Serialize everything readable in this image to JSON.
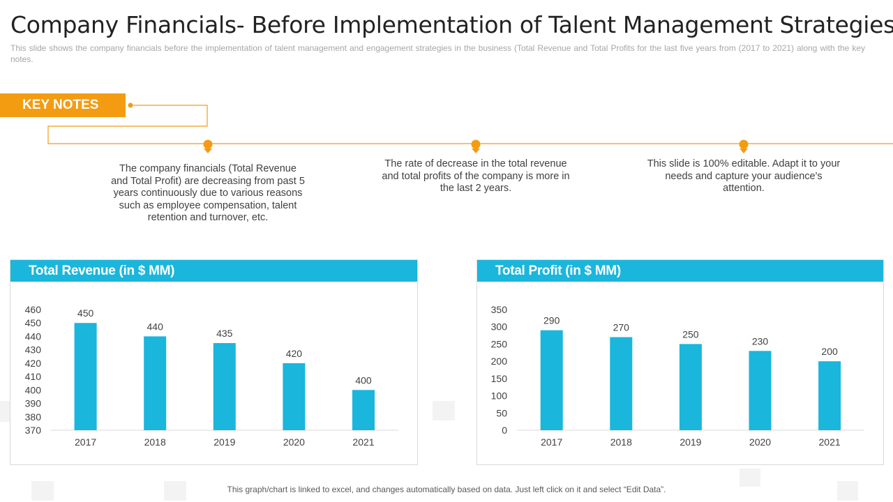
{
  "page": {
    "title": "Company Financials- Before Implementation of Talent Management Strategies",
    "subtitle": "This slide shows the company financials before the implementation of talent management and engagement strategies in the business (Total Revenue and Total Profits for the last five years from (2017 to 2021) along with the key notes.",
    "footer": "This graph/chart is linked to excel, and changes automatically based on data. Just left click on it and select “Edit Data”."
  },
  "key_notes": {
    "label": "KEY NOTES",
    "notes": [
      "The company financials (Total Revenue and Total Profit) are decreasing from past 5 years continuously due to various reasons such as employee compensation, talent retention and turnover, etc.",
      "The rate of decrease in the total revenue and total profits of the company is more in the last 2 years.",
      "This slide is 100% editable. Adapt it to your needs and capture your audience's attention."
    ]
  },
  "colors": {
    "accent_orange": "#f39c12",
    "bar_blue": "#1ab6dc",
    "header_blue": "#1ab6dc"
  },
  "chart_data": [
    {
      "type": "bar",
      "title": "Total Revenue (in $ MM)",
      "categories": [
        "2017",
        "2018",
        "2019",
        "2020",
        "2021"
      ],
      "values": [
        450,
        440,
        435,
        420,
        400
      ],
      "ylim": [
        370,
        460
      ],
      "yticks": [
        370,
        380,
        390,
        400,
        410,
        420,
        430,
        440,
        450,
        460
      ],
      "data_labels": true,
      "grid": false
    },
    {
      "type": "bar",
      "title": "Total Profit (in $ MM)",
      "categories": [
        "2017",
        "2018",
        "2019",
        "2020",
        "2021"
      ],
      "values": [
        290,
        270,
        250,
        230,
        200
      ],
      "ylim": [
        0,
        350
      ],
      "yticks": [
        0,
        50,
        100,
        150,
        200,
        250,
        300,
        350
      ],
      "data_labels": true,
      "grid": false
    }
  ]
}
